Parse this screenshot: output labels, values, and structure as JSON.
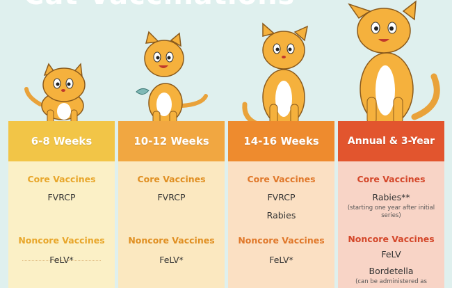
{
  "header": {
    "title": "Cat Vaccinations"
  },
  "colors": {
    "page_bg": "#dff0ee",
    "cat_orange": "#f5b13d",
    "cat_stripe": "#e0892a",
    "col1_head": "#f2c547",
    "col1_body": "#fbf0c6",
    "col2_head": "#f1a741",
    "col2_body": "#fbe8c0",
    "col3_head": "#ee8b2e",
    "col3_body": "#fbe0c3",
    "col4_head": "#e2552e",
    "col4_body": "#f8d4c6"
  },
  "columns": [
    {
      "heading": "6-8 Weeks",
      "core_label": "Core Vaccines",
      "core": [
        "FVRCP"
      ],
      "noncore_label": "Noncore Vaccines",
      "noncore": [
        "FeLV*"
      ]
    },
    {
      "heading": "10-12 Weeks",
      "core_label": "Core Vaccines",
      "core": [
        "FVRCP"
      ],
      "noncore_label": "Noncore Vaccines",
      "noncore": [
        "FeLV*"
      ]
    },
    {
      "heading": "14-16 Weeks",
      "core_label": "Core Vaccines",
      "core": [
        "FVRCP",
        "Rabies"
      ],
      "noncore_label": "Noncore Vaccines",
      "noncore": [
        "FeLV*"
      ]
    },
    {
      "heading": "Annual & 3-Year",
      "core_label": "Core Vaccines",
      "core": [
        "Rabies**"
      ],
      "core_note": "(starting one year after initial series)",
      "noncore_label": "Noncore Vaccines",
      "noncore": [
        "FeLV",
        "Bordetella"
      ],
      "noncore_note": "(can be administered as"
    }
  ]
}
